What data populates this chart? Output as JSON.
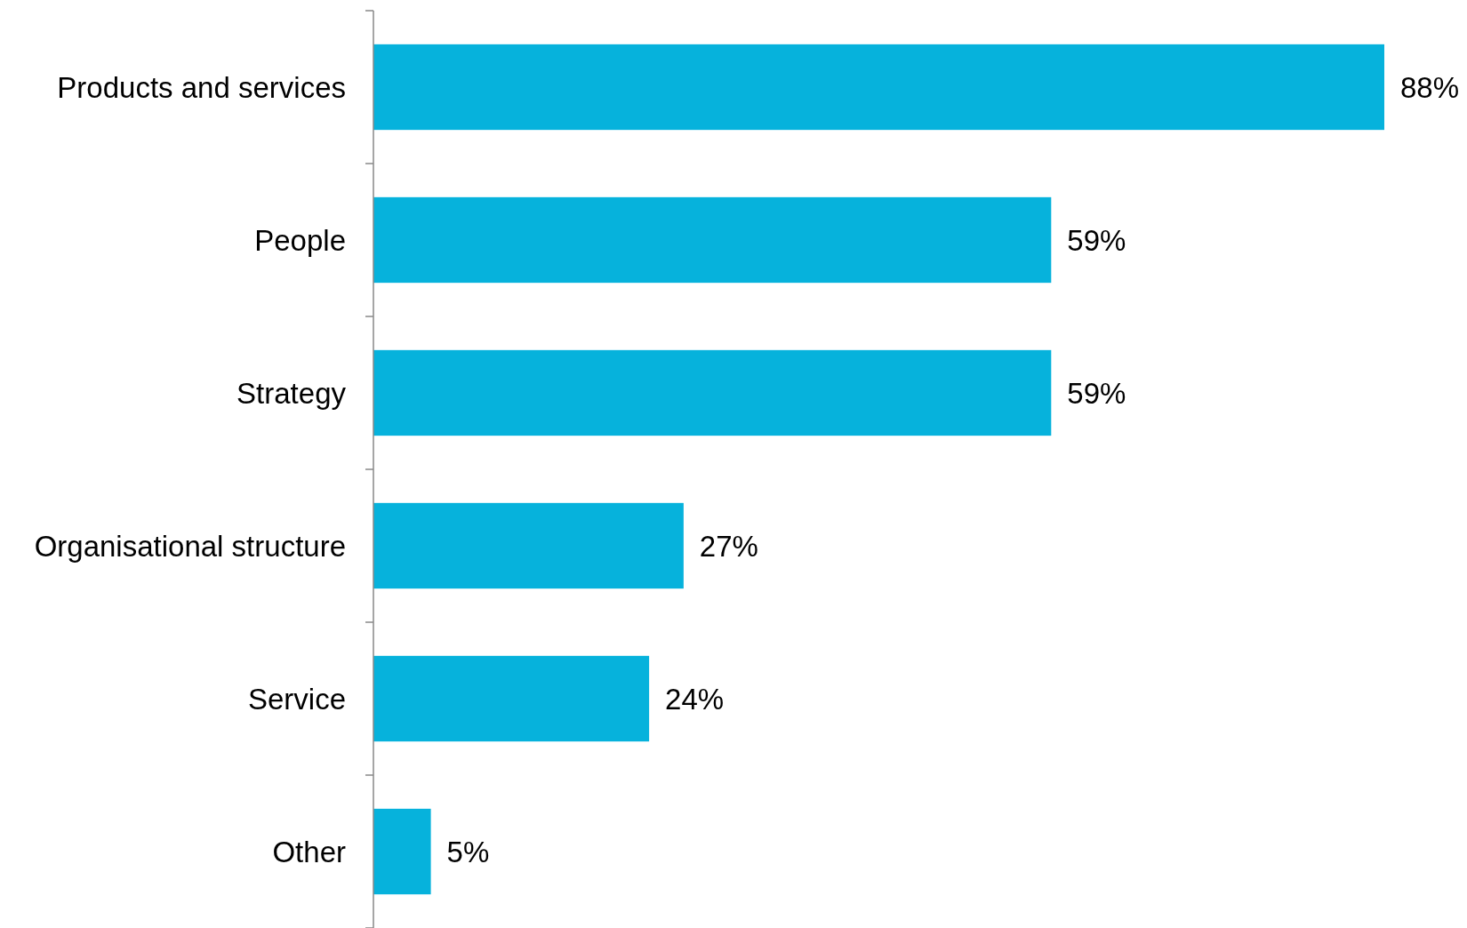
{
  "chart_data": {
    "type": "bar",
    "orientation": "horizontal",
    "categories": [
      "Products and services",
      "People",
      "Strategy",
      "Organisational structure",
      "Service",
      "Other"
    ],
    "values": [
      88,
      59,
      59,
      27,
      24,
      5
    ],
    "value_labels": [
      "88%",
      "59%",
      "59%",
      "27%",
      "24%",
      "5%"
    ],
    "color": "#06b2dc"
  }
}
